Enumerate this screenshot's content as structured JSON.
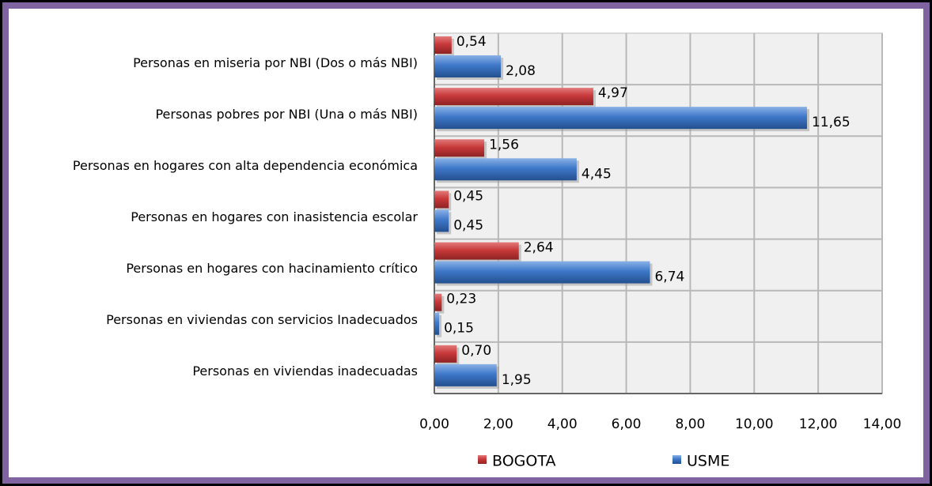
{
  "chart_data": {
    "type": "bar",
    "orientation": "horizontal",
    "categories": [
      "Personas en miseria por NBI (Dos o más NBI)",
      "Personas pobres por NBI  (Una o más NBI)",
      "Personas en hogares con alta dependencia económica",
      "Personas en hogares con inasistencia escolar",
      "Personas en hogares con hacinamiento crítico",
      "Personas en viviendas con servicios Inadecuados",
      "Personas en viviendas inadecuadas"
    ],
    "series": [
      {
        "name": "BOGOTA",
        "color": "#c8393a",
        "values": [
          0.54,
          4.97,
          1.56,
          0.45,
          2.64,
          0.23,
          0.7
        ],
        "value_labels": [
          "0,54",
          "4,97",
          "1,56",
          "0,45",
          "2,64",
          "0,23",
          "0,70"
        ]
      },
      {
        "name": "USME",
        "color": "#3e78c9",
        "values": [
          2.08,
          11.65,
          4.45,
          0.45,
          6.74,
          0.15,
          1.95
        ],
        "value_labels": [
          "2,08",
          "11,65",
          "4,45",
          "0,45",
          "6,74",
          "0,15",
          "1,95"
        ]
      }
    ],
    "xlim": [
      0,
      14
    ],
    "xticks": [
      {
        "value": 0,
        "label": "0,00"
      },
      {
        "value": 2,
        "label": "2,00"
      },
      {
        "value": 4,
        "label": "4,00"
      },
      {
        "value": 6,
        "label": "6,00"
      },
      {
        "value": 8,
        "label": "8,00"
      },
      {
        "value": 10,
        "label": "10,00"
      },
      {
        "value": 12,
        "label": "12,00"
      },
      {
        "value": 14,
        "label": "14,00"
      }
    ],
    "grid": true,
    "legend": "bottom"
  }
}
